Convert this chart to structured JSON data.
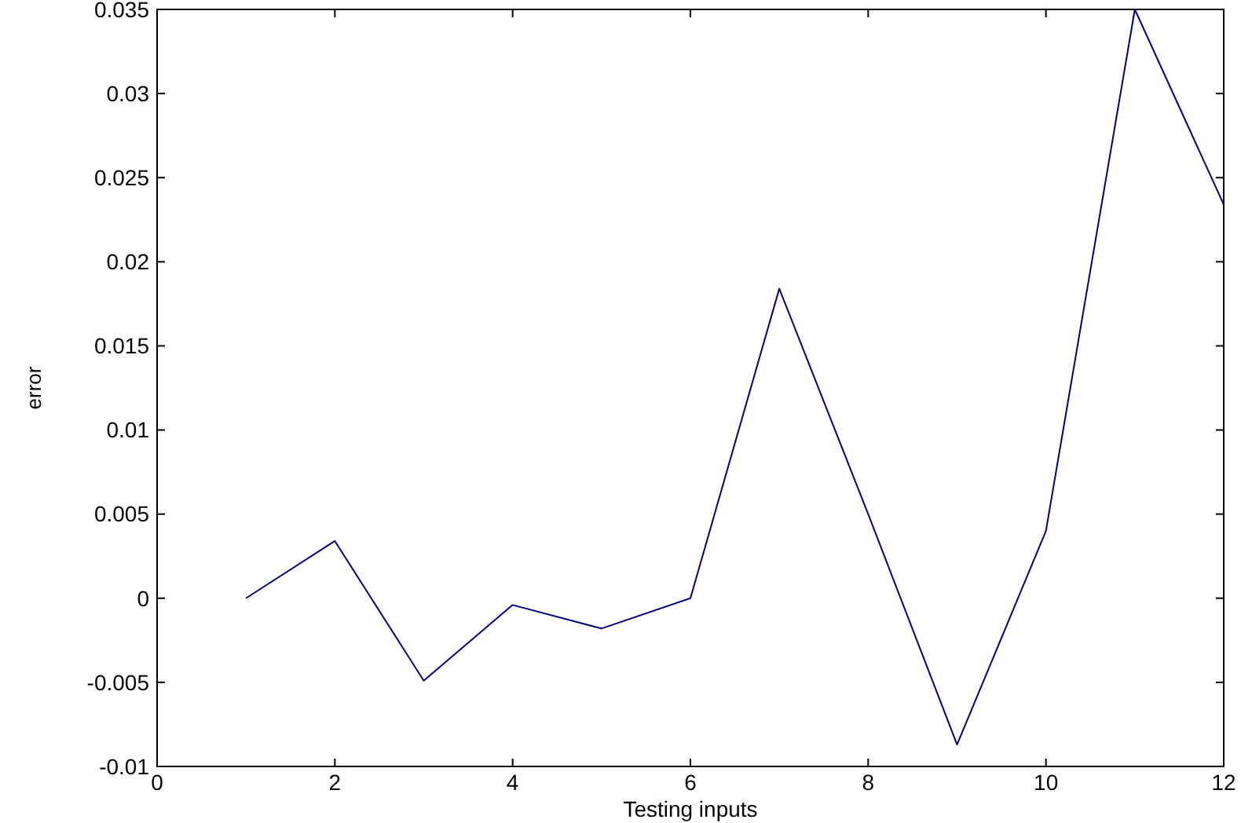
{
  "chart_data": {
    "type": "line",
    "xlabel": "Testing inputs",
    "ylabel": "error",
    "x": [
      1,
      2,
      3,
      4,
      5,
      6,
      7,
      8,
      9,
      10,
      11,
      12
    ],
    "series": [
      {
        "color": "#000080",
        "values": [
          0,
          0.0034,
          -0.0049,
          -0.0004,
          -0.0018,
          0,
          0.0184,
          0.005,
          -0.0087,
          0.004,
          0.035,
          0.0234
        ]
      }
    ],
    "xlim": [
      0,
      12
    ],
    "xticks": [
      0,
      2,
      4,
      6,
      8,
      10,
      12
    ],
    "ylim": [
      -0.01,
      0.035
    ],
    "yticks": [
      -0.01,
      -0.005,
      0,
      0.005,
      0.01,
      0.015,
      0.02,
      0.025,
      0.03,
      0.035
    ],
    "grid": false,
    "marker": "none",
    "line_style": "solid"
  }
}
